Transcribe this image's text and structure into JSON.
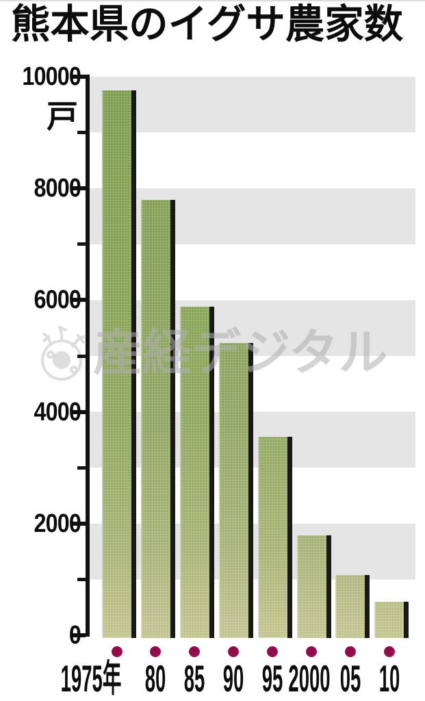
{
  "title": "熊本県のイグサ農家数",
  "watermark": {
    "text": "産経デジタル",
    "logo": "sankei-eye-logo"
  },
  "chart_data": {
    "type": "bar",
    "title": "熊本県のイグサ農家数",
    "unit_label": "戸",
    "categories": [
      "1975年",
      "80",
      "85",
      "90",
      "95",
      "2000",
      "05",
      "10"
    ],
    "values": [
      9750,
      7800,
      5880,
      5230,
      3550,
      1790,
      1080,
      600
    ],
    "xlabel": "",
    "ylabel": "戸",
    "ylim": [
      0,
      10000
    ],
    "ytick_major_values": [
      10000,
      8000,
      6000,
      4000,
      2000,
      0
    ],
    "ytick_major_labels": [
      "10000",
      "8000",
      "6000",
      "4000",
      "2000",
      "0"
    ],
    "ytick_minor_values": [
      9000,
      7000,
      5000,
      3000,
      1000
    ],
    "grid": "alternating horizontal gray/white bands per 1000",
    "legend": null
  },
  "colors": {
    "bar_green_top": "#7d9c4e",
    "bar_green_bottom": "#c2c490",
    "bar_shadow": "#191919",
    "stripe_gray": "#e5e5e5",
    "category_dot": "#b01157",
    "axis": "#111111",
    "watermark_gray": "#afafaf",
    "background": "#ffffff"
  }
}
